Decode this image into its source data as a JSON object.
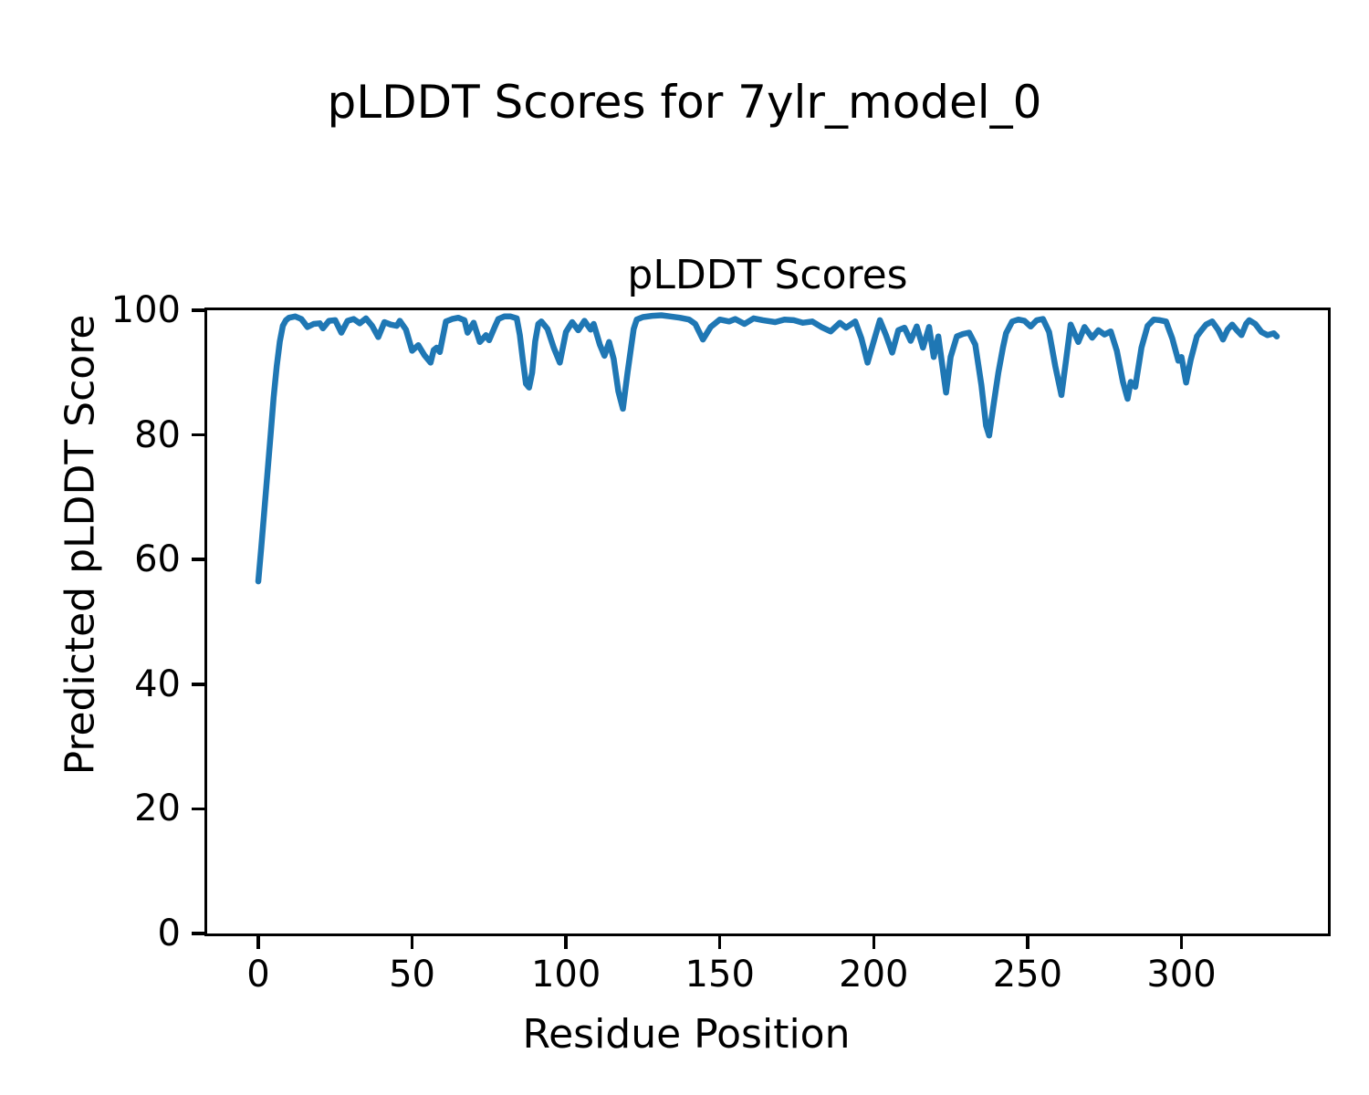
{
  "figure": {
    "suptitle": "pLDDT Scores for 7ylr_model_0"
  },
  "colors": {
    "line": "#1f77b4",
    "text": "#000000",
    "background": "#ffffff"
  },
  "chart_data": {
    "type": "line",
    "title": "pLDDT Scores",
    "xlabel": "Residue Position",
    "ylabel": "Predicted pLDDT Score",
    "xlim": [
      -16.6,
      347.6
    ],
    "ylim": [
      0,
      100
    ],
    "x_ticks": [
      0,
      50,
      100,
      150,
      200,
      250,
      300
    ],
    "y_ticks": [
      0,
      20,
      40,
      60,
      80,
      100
    ],
    "grid": false,
    "legend_position": "none",
    "line_color": "#1f77b4",
    "series": [
      {
        "name": "pLDDT",
        "points": [
          [
            0,
            56.5
          ],
          [
            1,
            62
          ],
          [
            2,
            68
          ],
          [
            3,
            74
          ],
          [
            4,
            80
          ],
          [
            5,
            86
          ],
          [
            6,
            91
          ],
          [
            7,
            95
          ],
          [
            8,
            97.5
          ],
          [
            9,
            98.4
          ],
          [
            10,
            98.8
          ],
          [
            12,
            99
          ],
          [
            14,
            98.6
          ],
          [
            16,
            97.3
          ],
          [
            18,
            97.8
          ],
          [
            20,
            97.9
          ],
          [
            21,
            97.1
          ],
          [
            23,
            98.3
          ],
          [
            25,
            98.4
          ],
          [
            27,
            96.4
          ],
          [
            29,
            98.3
          ],
          [
            31,
            98.6
          ],
          [
            33,
            97.9
          ],
          [
            35,
            98.7
          ],
          [
            37,
            97.5
          ],
          [
            39,
            95.7
          ],
          [
            41,
            98.1
          ],
          [
            43,
            97.7
          ],
          [
            45,
            97.5
          ],
          [
            46,
            98.3
          ],
          [
            48,
            96.9
          ],
          [
            50,
            93.5
          ],
          [
            52,
            94.4
          ],
          [
            54,
            92.8
          ],
          [
            56,
            91.6
          ],
          [
            57,
            93.6
          ],
          [
            58,
            94
          ],
          [
            59,
            93.3
          ],
          [
            61,
            98.2
          ],
          [
            63,
            98.6
          ],
          [
            65,
            98.8
          ],
          [
            67,
            98.4
          ],
          [
            68,
            96.4
          ],
          [
            70,
            98
          ],
          [
            72,
            94.9
          ],
          [
            74,
            96
          ],
          [
            75,
            95.2
          ],
          [
            77,
            97.5
          ],
          [
            78,
            98.6
          ],
          [
            80,
            99
          ],
          [
            82,
            99
          ],
          [
            84,
            98.7
          ],
          [
            85,
            96
          ],
          [
            86,
            92
          ],
          [
            87,
            88.2
          ],
          [
            88,
            87.6
          ],
          [
            89,
            90
          ],
          [
            90,
            95
          ],
          [
            91,
            97.8
          ],
          [
            92,
            98.2
          ],
          [
            94,
            97
          ],
          [
            96,
            94
          ],
          [
            98,
            91.6
          ],
          [
            100,
            96.5
          ],
          [
            102,
            98.1
          ],
          [
            104,
            96.8
          ],
          [
            106,
            98.3
          ],
          [
            108,
            96.9
          ],
          [
            109,
            97.8
          ],
          [
            111,
            94.5
          ],
          [
            112.5,
            92.7
          ],
          [
            114,
            94.9
          ],
          [
            115.5,
            92.2
          ],
          [
            117,
            87
          ],
          [
            118.5,
            84.2
          ],
          [
            120,
            90
          ],
          [
            122,
            97
          ],
          [
            123,
            98.5
          ],
          [
            125,
            98.9
          ],
          [
            128,
            99.1
          ],
          [
            131,
            99.2
          ],
          [
            134,
            99
          ],
          [
            137,
            98.8
          ],
          [
            140,
            98.5
          ],
          [
            142,
            97.8
          ],
          [
            144.5,
            95.3
          ],
          [
            147,
            97.3
          ],
          [
            150,
            98.5
          ],
          [
            153,
            98.2
          ],
          [
            155,
            98.6
          ],
          [
            158,
            97.8
          ],
          [
            161,
            98.7
          ],
          [
            164,
            98.4
          ],
          [
            168,
            98.1
          ],
          [
            171,
            98.5
          ],
          [
            174,
            98.4
          ],
          [
            177,
            98
          ],
          [
            180,
            98.2
          ],
          [
            183,
            97.3
          ],
          [
            186,
            96.6
          ],
          [
            189,
            98
          ],
          [
            191,
            97.2
          ],
          [
            194,
            98.2
          ],
          [
            196,
            95.5
          ],
          [
            198,
            91.6
          ],
          [
            200,
            95
          ],
          [
            202,
            98.4
          ],
          [
            204,
            96
          ],
          [
            206,
            93.2
          ],
          [
            208,
            96.8
          ],
          [
            210,
            97.2
          ],
          [
            212,
            95.1
          ],
          [
            214,
            97.4
          ],
          [
            216,
            94
          ],
          [
            218,
            97.3
          ],
          [
            219.5,
            92.5
          ],
          [
            221,
            95.8
          ],
          [
            223.5,
            86.8
          ],
          [
            225,
            92.5
          ],
          [
            227,
            95.8
          ],
          [
            229,
            96.2
          ],
          [
            231,
            96.4
          ],
          [
            233,
            94.5
          ],
          [
            235,
            88
          ],
          [
            236.5,
            81.5
          ],
          [
            237.5,
            79.9
          ],
          [
            239,
            85
          ],
          [
            240.5,
            90
          ],
          [
            242,
            94
          ],
          [
            243,
            96.3
          ],
          [
            245,
            98.2
          ],
          [
            247,
            98.5
          ],
          [
            249,
            98.3
          ],
          [
            251,
            97.4
          ],
          [
            253,
            98.4
          ],
          [
            255,
            98.6
          ],
          [
            257,
            96.5
          ],
          [
            259,
            91
          ],
          [
            261,
            86.4
          ],
          [
            262.5,
            92
          ],
          [
            264,
            97.7
          ],
          [
            266.5,
            94.9
          ],
          [
            268.5,
            97.3
          ],
          [
            271,
            95.6
          ],
          [
            273,
            96.8
          ],
          [
            275,
            96.1
          ],
          [
            277,
            96.6
          ],
          [
            279,
            93.5
          ],
          [
            281,
            88.5
          ],
          [
            282.5,
            85.8
          ],
          [
            283.5,
            88.5
          ],
          [
            285,
            87.7
          ],
          [
            287,
            94
          ],
          [
            289,
            97.5
          ],
          [
            291,
            98.5
          ],
          [
            293,
            98.4
          ],
          [
            295,
            98.2
          ],
          [
            297,
            95.5
          ],
          [
            299,
            91.9
          ],
          [
            300,
            92.5
          ],
          [
            301.5,
            88.4
          ],
          [
            303,
            92
          ],
          [
            305,
            95.8
          ],
          [
            306.5,
            96.8
          ],
          [
            308,
            97.7
          ],
          [
            310,
            98.2
          ],
          [
            312,
            96.8
          ],
          [
            313.5,
            95.3
          ],
          [
            315,
            96.9
          ],
          [
            316.5,
            97.7
          ],
          [
            318,
            96.8
          ],
          [
            319.5,
            96
          ],
          [
            321,
            97.8
          ],
          [
            322,
            98.4
          ],
          [
            324,
            97.8
          ],
          [
            326,
            96.5
          ],
          [
            328,
            96
          ],
          [
            330,
            96.3
          ],
          [
            331,
            95.8
          ]
        ]
      }
    ]
  }
}
